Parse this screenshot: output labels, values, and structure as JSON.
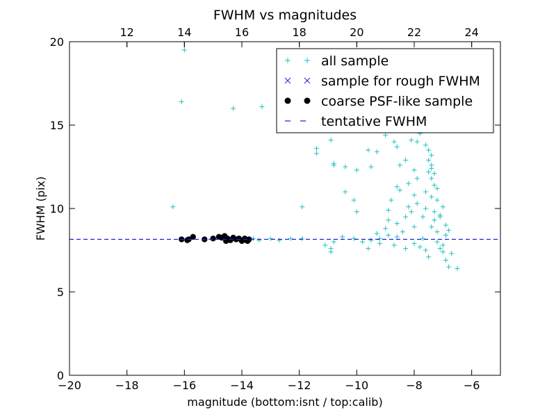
{
  "chart_data": {
    "type": "scatter",
    "title": "FWHM vs magnitudes",
    "xlabel": "magnitude (bottom:isnt / top:calib)",
    "ylabel": "FWHM (pix)",
    "xlim": [
      -20,
      -5
    ],
    "ylim": [
      0,
      20
    ],
    "x_ticks": [
      "−20",
      "−18",
      "−16",
      "−14",
      "−12",
      "−10",
      "−8",
      "−6"
    ],
    "x_tick_values": [
      -20,
      -18,
      -16,
      -14,
      -12,
      -10,
      -8,
      -6
    ],
    "y_ticks": [
      "0",
      "5",
      "10",
      "15",
      "20"
    ],
    "y_tick_values": [
      0,
      5,
      10,
      15,
      20
    ],
    "top_axis": {
      "ticks": [
        "12",
        "14",
        "16",
        "18",
        "20",
        "22",
        "24"
      ],
      "tick_values": [
        12,
        14,
        16,
        18,
        20,
        22,
        24
      ],
      "offset": 30.0
    },
    "grid": false,
    "legend_position": "top-right",
    "series": [
      {
        "name": "all sample",
        "marker": "plus",
        "color": "#22bfbf",
        "points": [
          [
            -16.4,
            10.1
          ],
          [
            -16.1,
            16.4
          ],
          [
            -16.0,
            19.5
          ],
          [
            -14.3,
            16.0
          ],
          [
            -13.3,
            16.1
          ],
          [
            -11.9,
            10.1
          ],
          [
            -11.4,
            13.3
          ],
          [
            -11.4,
            13.6
          ],
          [
            -10.9,
            14.1
          ],
          [
            -10.8,
            12.7
          ],
          [
            -10.8,
            12.6
          ],
          [
            -10.4,
            12.5
          ],
          [
            -10.0,
            12.3
          ],
          [
            -10.0,
            9.8
          ],
          [
            -10.4,
            11.0
          ],
          [
            -10.1,
            10.5
          ],
          [
            -9.6,
            13.5
          ],
          [
            -9.3,
            13.4
          ],
          [
            -9.5,
            12.5
          ],
          [
            -9.0,
            14.4
          ],
          [
            -8.7,
            14.0
          ],
          [
            -8.6,
            13.7
          ],
          [
            -8.5,
            12.6
          ],
          [
            -8.6,
            11.3
          ],
          [
            -8.5,
            11.1
          ],
          [
            -8.3,
            12.9
          ],
          [
            -8.1,
            14.1
          ],
          [
            -7.9,
            14.0
          ],
          [
            -7.8,
            14.5
          ],
          [
            -7.6,
            13.8
          ],
          [
            -7.4,
            13.2
          ],
          [
            -7.5,
            13.5
          ],
          [
            -7.5,
            12.9
          ],
          [
            -7.4,
            12.6
          ],
          [
            -7.4,
            12.4
          ],
          [
            -7.5,
            12.2
          ],
          [
            -7.3,
            12.1
          ],
          [
            -7.4,
            11.8
          ],
          [
            -7.3,
            11.4
          ],
          [
            -7.2,
            11.2
          ],
          [
            -7.6,
            11.0
          ],
          [
            -7.4,
            10.7
          ],
          [
            -7.2,
            10.5
          ],
          [
            -7.0,
            10.1
          ],
          [
            -7.1,
            9.6
          ],
          [
            -7.3,
            9.3
          ],
          [
            -6.9,
            9.0
          ],
          [
            -6.8,
            8.7
          ],
          [
            -6.9,
            8.4
          ],
          [
            -7.0,
            7.8
          ],
          [
            -7.1,
            7.6
          ],
          [
            -7.0,
            7.4
          ],
          [
            -6.7,
            7.3
          ],
          [
            -6.9,
            6.9
          ],
          [
            -6.8,
            6.5
          ],
          [
            -6.5,
            6.4
          ],
          [
            -7.5,
            7.1
          ],
          [
            -7.4,
            8.9
          ],
          [
            -7.9,
            10.3
          ],
          [
            -8.0,
            10.8
          ],
          [
            -8.2,
            11.5
          ],
          [
            -7.9,
            11.8
          ],
          [
            -8.0,
            12.3
          ],
          [
            -8.8,
            10.5
          ],
          [
            -8.9,
            9.9
          ],
          [
            -8.9,
            9.3
          ],
          [
            -8.6,
            9.1
          ],
          [
            -8.3,
            9.5
          ],
          [
            -8.1,
            9.8
          ],
          [
            -7.7,
            9.5
          ],
          [
            -8.0,
            8.9
          ],
          [
            -8.4,
            8.6
          ],
          [
            -8.6,
            8.3
          ],
          [
            -8.9,
            8.4
          ],
          [
            -9.2,
            8.2
          ],
          [
            -9.5,
            8.1
          ],
          [
            -9.8,
            8.0
          ],
          [
            -10.1,
            8.2
          ],
          [
            -10.5,
            8.3
          ],
          [
            -10.8,
            8.0
          ],
          [
            -11.1,
            7.8
          ],
          [
            -10.9,
            7.6
          ],
          [
            -10.9,
            7.4
          ],
          [
            -9.6,
            7.6
          ],
          [
            -9.2,
            7.9
          ],
          [
            -8.7,
            7.8
          ],
          [
            -8.3,
            7.6
          ],
          [
            -8.0,
            7.9
          ],
          [
            -7.8,
            7.7
          ],
          [
            -7.6,
            7.5
          ],
          [
            -11.9,
            8.2
          ],
          [
            -12.3,
            8.2
          ],
          [
            -12.7,
            8.1
          ],
          [
            -13.0,
            8.2
          ],
          [
            -13.4,
            8.1
          ],
          [
            -13.6,
            8.2
          ],
          [
            -9.3,
            8.5
          ],
          [
            -9.0,
            8.8
          ],
          [
            -7.7,
            8.2
          ],
          [
            -7.2,
            8.0
          ],
          [
            -8.2,
            10.1
          ],
          [
            -7.6,
            10.0
          ],
          [
            -7.3,
            9.8
          ],
          [
            -7.1,
            9.5
          ],
          [
            -7.2,
            8.6
          ]
        ]
      },
      {
        "name": "sample for rough FWHM",
        "marker": "x",
        "color": "#2222dd",
        "points": []
      },
      {
        "name": "coarse PSF-like sample",
        "marker": "circle",
        "color": "#000000",
        "points": [
          [
            -16.1,
            8.15
          ],
          [
            -15.9,
            8.1
          ],
          [
            -15.7,
            8.3
          ],
          [
            -15.3,
            8.15
          ],
          [
            -15.0,
            8.2
          ],
          [
            -14.8,
            8.3
          ],
          [
            -14.6,
            8.35
          ],
          [
            -14.5,
            8.2
          ],
          [
            -14.4,
            8.1
          ],
          [
            -14.3,
            8.25
          ],
          [
            -14.2,
            8.15
          ],
          [
            -14.1,
            8.2
          ],
          [
            -14.0,
            8.05
          ],
          [
            -13.9,
            8.2
          ],
          [
            -13.85,
            8.1
          ],
          [
            -13.8,
            8.05
          ],
          [
            -13.75,
            8.15
          ],
          [
            -14.55,
            8.05
          ],
          [
            -15.85,
            8.15
          ],
          [
            -14.7,
            8.25
          ]
        ]
      },
      {
        "name": "tentative FWHM",
        "marker": "dashed-line",
        "color": "#2222dd",
        "y": 8.15
      }
    ]
  }
}
